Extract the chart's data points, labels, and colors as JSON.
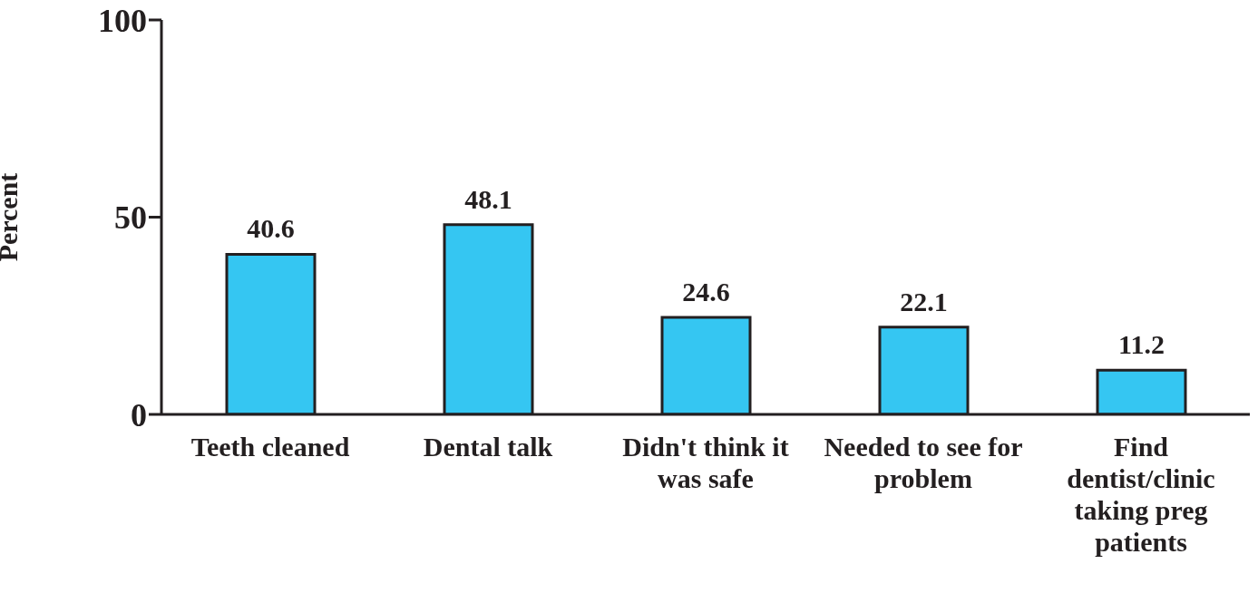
{
  "chart_data": {
    "type": "bar",
    "ylabel": "Percent",
    "categories": [
      "Teeth cleaned",
      "Dental talk",
      "Didn't think it was safe",
      "Needed to see for problem",
      "Find dentist/clinic taking preg patients"
    ],
    "values": [
      40.6,
      48.1,
      24.6,
      22.1,
      11.2
    ],
    "color": "#35c6f2",
    "ylim": [
      0,
      100
    ],
    "yticks": [
      0,
      50,
      100
    ],
    "grid": false,
    "data_labels": true
  }
}
